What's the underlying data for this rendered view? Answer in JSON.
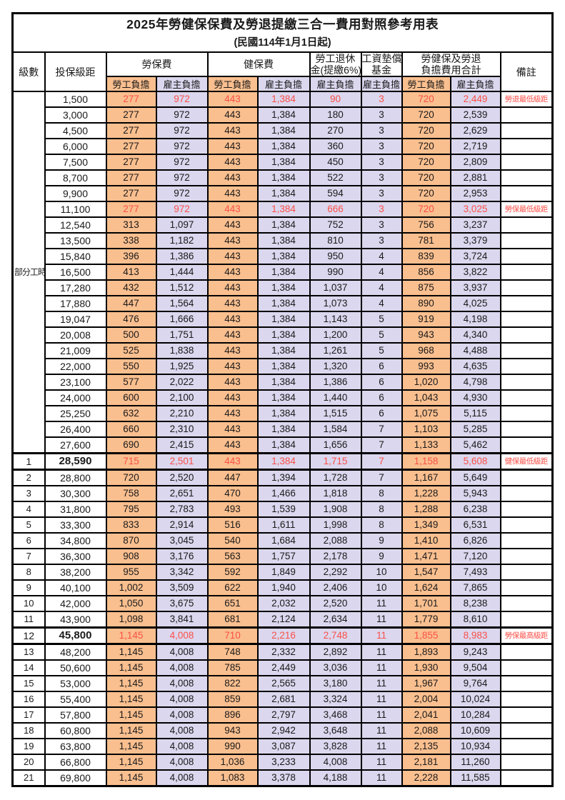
{
  "title": "2025年勞健保保費及勞退提繳三合一費用對照參考用表",
  "subtitle": "(民國114年1月1日起)",
  "colors": {
    "employee_bg": "#FABF8F",
    "employer_bg": "#DBD7EE",
    "highlight_text": "#FB5048"
  },
  "columns": {
    "level": "級數",
    "bracket": "投保級距",
    "labor_insurance": "勞保費",
    "health_insurance": "健保費",
    "pension_line1": "勞工退休",
    "pension_line2": "金(提繳6%)",
    "wage_fund_line1": "工資墊償",
    "wage_fund_line2": "基金",
    "total_line1": "勞健保及勞退",
    "total_line2": "負擔費用合計",
    "note": "備註",
    "employee_share": "勞工負擔",
    "employer_share": "雇主負擔"
  },
  "part_time_label": "部分工時",
  "rows": [
    {
      "level": "",
      "bracket": "1,500",
      "v": [
        "277",
        "972",
        "443",
        "1,384",
        "90",
        "3",
        "720",
        "2,449"
      ],
      "note": "勞退最低級距",
      "red": true,
      "key": false
    },
    {
      "level": "",
      "bracket": "3,000",
      "v": [
        "277",
        "972",
        "443",
        "1,384",
        "180",
        "3",
        "720",
        "2,539"
      ],
      "note": "",
      "red": false,
      "key": false
    },
    {
      "level": "",
      "bracket": "4,500",
      "v": [
        "277",
        "972",
        "443",
        "1,384",
        "270",
        "3",
        "720",
        "2,629"
      ],
      "note": "",
      "red": false,
      "key": false
    },
    {
      "level": "",
      "bracket": "6,000",
      "v": [
        "277",
        "972",
        "443",
        "1,384",
        "360",
        "3",
        "720",
        "2,719"
      ],
      "note": "",
      "red": false,
      "key": false
    },
    {
      "level": "",
      "bracket": "7,500",
      "v": [
        "277",
        "972",
        "443",
        "1,384",
        "450",
        "3",
        "720",
        "2,809"
      ],
      "note": "",
      "red": false,
      "key": false
    },
    {
      "level": "",
      "bracket": "8,700",
      "v": [
        "277",
        "972",
        "443",
        "1,384",
        "522",
        "3",
        "720",
        "2,881"
      ],
      "note": "",
      "red": false,
      "key": false
    },
    {
      "level": "",
      "bracket": "9,900",
      "v": [
        "277",
        "972",
        "443",
        "1,384",
        "594",
        "3",
        "720",
        "2,953"
      ],
      "note": "",
      "red": false,
      "key": false
    },
    {
      "level": "",
      "bracket": "11,100",
      "v": [
        "277",
        "972",
        "443",
        "1,384",
        "666",
        "3",
        "720",
        "3,025"
      ],
      "note": "勞保最低級距",
      "red": true,
      "key": false
    },
    {
      "level": "",
      "bracket": "12,540",
      "v": [
        "313",
        "1,097",
        "443",
        "1,384",
        "752",
        "3",
        "756",
        "3,237"
      ],
      "note": "",
      "red": false,
      "key": false
    },
    {
      "level": "",
      "bracket": "13,500",
      "v": [
        "338",
        "1,182",
        "443",
        "1,384",
        "810",
        "3",
        "781",
        "3,379"
      ],
      "note": "",
      "red": false,
      "key": false
    },
    {
      "level": "",
      "bracket": "15,840",
      "v": [
        "396",
        "1,386",
        "443",
        "1,384",
        "950",
        "4",
        "839",
        "3,724"
      ],
      "note": "",
      "red": false,
      "key": false
    },
    {
      "level": "",
      "bracket": "16,500",
      "v": [
        "413",
        "1,444",
        "443",
        "1,384",
        "990",
        "4",
        "856",
        "3,822"
      ],
      "note": "",
      "red": false,
      "key": false
    },
    {
      "level": "",
      "bracket": "17,280",
      "v": [
        "432",
        "1,512",
        "443",
        "1,384",
        "1,037",
        "4",
        "875",
        "3,937"
      ],
      "note": "",
      "red": false,
      "key": false
    },
    {
      "level": "",
      "bracket": "17,880",
      "v": [
        "447",
        "1,564",
        "443",
        "1,384",
        "1,073",
        "4",
        "890",
        "4,025"
      ],
      "note": "",
      "red": false,
      "key": false
    },
    {
      "level": "",
      "bracket": "19,047",
      "v": [
        "476",
        "1,666",
        "443",
        "1,384",
        "1,143",
        "5",
        "919",
        "4,198"
      ],
      "note": "",
      "red": false,
      "key": false
    },
    {
      "level": "",
      "bracket": "20,008",
      "v": [
        "500",
        "1,751",
        "443",
        "1,384",
        "1,200",
        "5",
        "943",
        "4,340"
      ],
      "note": "",
      "red": false,
      "key": false
    },
    {
      "level": "",
      "bracket": "21,009",
      "v": [
        "525",
        "1,838",
        "443",
        "1,384",
        "1,261",
        "5",
        "968",
        "4,488"
      ],
      "note": "",
      "red": false,
      "key": false
    },
    {
      "level": "",
      "bracket": "22,000",
      "v": [
        "550",
        "1,925",
        "443",
        "1,384",
        "1,320",
        "6",
        "993",
        "4,635"
      ],
      "note": "",
      "red": false,
      "key": false
    },
    {
      "level": "",
      "bracket": "23,100",
      "v": [
        "577",
        "2,022",
        "443",
        "1,384",
        "1,386",
        "6",
        "1,020",
        "4,798"
      ],
      "note": "",
      "red": false,
      "key": false
    },
    {
      "level": "",
      "bracket": "24,000",
      "v": [
        "600",
        "2,100",
        "443",
        "1,384",
        "1,440",
        "6",
        "1,043",
        "4,930"
      ],
      "note": "",
      "red": false,
      "key": false
    },
    {
      "level": "",
      "bracket": "25,250",
      "v": [
        "632",
        "2,210",
        "443",
        "1,384",
        "1,515",
        "6",
        "1,075",
        "5,115"
      ],
      "note": "",
      "red": false,
      "key": false
    },
    {
      "level": "",
      "bracket": "26,400",
      "v": [
        "660",
        "2,310",
        "443",
        "1,384",
        "1,584",
        "7",
        "1,103",
        "5,285"
      ],
      "note": "",
      "red": false,
      "key": false
    },
    {
      "level": "",
      "bracket": "27,600",
      "v": [
        "690",
        "2,415",
        "443",
        "1,384",
        "1,656",
        "7",
        "1,133",
        "5,462"
      ],
      "note": "",
      "red": false,
      "key": false
    },
    {
      "level": "1",
      "bracket": "28,590",
      "v": [
        "715",
        "2,501",
        "443",
        "1,384",
        "1,715",
        "7",
        "1,158",
        "5,608"
      ],
      "note": "健保最低級距",
      "red": true,
      "key": true
    },
    {
      "level": "2",
      "bracket": "28,800",
      "v": [
        "720",
        "2,520",
        "447",
        "1,394",
        "1,728",
        "7",
        "1,167",
        "5,649"
      ],
      "note": "",
      "red": false,
      "key": false
    },
    {
      "level": "3",
      "bracket": "30,300",
      "v": [
        "758",
        "2,651",
        "470",
        "1,466",
        "1,818",
        "8",
        "1,228",
        "5,943"
      ],
      "note": "",
      "red": false,
      "key": false
    },
    {
      "level": "4",
      "bracket": "31,800",
      "v": [
        "795",
        "2,783",
        "493",
        "1,539",
        "1,908",
        "8",
        "1,288",
        "6,238"
      ],
      "note": "",
      "red": false,
      "key": false
    },
    {
      "level": "5",
      "bracket": "33,300",
      "v": [
        "833",
        "2,914",
        "516",
        "1,611",
        "1,998",
        "8",
        "1,349",
        "6,531"
      ],
      "note": "",
      "red": false,
      "key": false
    },
    {
      "level": "6",
      "bracket": "34,800",
      "v": [
        "870",
        "3,045",
        "540",
        "1,684",
        "2,088",
        "9",
        "1,410",
        "6,826"
      ],
      "note": "",
      "red": false,
      "key": false
    },
    {
      "level": "7",
      "bracket": "36,300",
      "v": [
        "908",
        "3,176",
        "563",
        "1,757",
        "2,178",
        "9",
        "1,471",
        "7,120"
      ],
      "note": "",
      "red": false,
      "key": false
    },
    {
      "level": "8",
      "bracket": "38,200",
      "v": [
        "955",
        "3,342",
        "592",
        "1,849",
        "2,292",
        "10",
        "1,547",
        "7,493"
      ],
      "note": "",
      "red": false,
      "key": false
    },
    {
      "level": "9",
      "bracket": "40,100",
      "v": [
        "1,002",
        "3,509",
        "622",
        "1,940",
        "2,406",
        "10",
        "1,624",
        "7,865"
      ],
      "note": "",
      "red": false,
      "key": false
    },
    {
      "level": "10",
      "bracket": "42,000",
      "v": [
        "1,050",
        "3,675",
        "651",
        "2,032",
        "2,520",
        "11",
        "1,701",
        "8,238"
      ],
      "note": "",
      "red": false,
      "key": false
    },
    {
      "level": "11",
      "bracket": "43,900",
      "v": [
        "1,098",
        "3,841",
        "681",
        "2,124",
        "2,634",
        "11",
        "1,779",
        "8,610"
      ],
      "note": "",
      "red": false,
      "key": false
    },
    {
      "level": "12",
      "bracket": "45,800",
      "v": [
        "1,145",
        "4,008",
        "710",
        "2,216",
        "2,748",
        "11",
        "1,855",
        "8,983"
      ],
      "note": "勞保最高級距",
      "red": true,
      "key": true
    },
    {
      "level": "13",
      "bracket": "48,200",
      "v": [
        "1,145",
        "4,008",
        "748",
        "2,332",
        "2,892",
        "11",
        "1,893",
        "9,243"
      ],
      "note": "",
      "red": false,
      "key": false
    },
    {
      "level": "14",
      "bracket": "50,600",
      "v": [
        "1,145",
        "4,008",
        "785",
        "2,449",
        "3,036",
        "11",
        "1,930",
        "9,504"
      ],
      "note": "",
      "red": false,
      "key": false
    },
    {
      "level": "15",
      "bracket": "53,000",
      "v": [
        "1,145",
        "4,008",
        "822",
        "2,565",
        "3,180",
        "11",
        "1,967",
        "9,764"
      ],
      "note": "",
      "red": false,
      "key": false
    },
    {
      "level": "16",
      "bracket": "55,400",
      "v": [
        "1,145",
        "4,008",
        "859",
        "2,681",
        "3,324",
        "11",
        "2,004",
        "10,024"
      ],
      "note": "",
      "red": false,
      "key": false
    },
    {
      "level": "17",
      "bracket": "57,800",
      "v": [
        "1,145",
        "4,008",
        "896",
        "2,797",
        "3,468",
        "11",
        "2,041",
        "10,284"
      ],
      "note": "",
      "red": false,
      "key": false
    },
    {
      "level": "18",
      "bracket": "60,800",
      "v": [
        "1,145",
        "4,008",
        "943",
        "2,942",
        "3,648",
        "11",
        "2,088",
        "10,609"
      ],
      "note": "",
      "red": false,
      "key": false
    },
    {
      "level": "19",
      "bracket": "63,800",
      "v": [
        "1,145",
        "4,008",
        "990",
        "3,087",
        "3,828",
        "11",
        "2,135",
        "10,934"
      ],
      "note": "",
      "red": false,
      "key": false
    },
    {
      "level": "20",
      "bracket": "66,800",
      "v": [
        "1,145",
        "4,008",
        "1,036",
        "3,233",
        "4,008",
        "11",
        "2,181",
        "11,260"
      ],
      "note": "",
      "red": false,
      "key": false
    },
    {
      "level": "21",
      "bracket": "69,800",
      "v": [
        "1,145",
        "4,008",
        "1,083",
        "3,378",
        "4,188",
        "11",
        "2,228",
        "11,585"
      ],
      "note": "",
      "red": false,
      "key": false
    }
  ]
}
